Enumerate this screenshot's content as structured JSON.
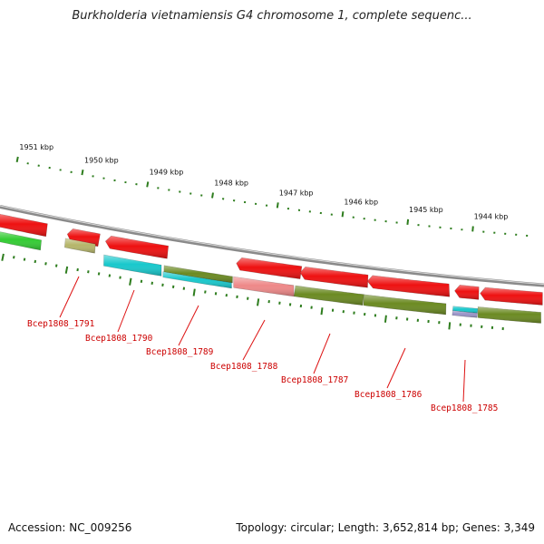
{
  "title": "Burkholderia vietnamiensis G4 chromosome 1, complete sequenc...",
  "footer": {
    "accession": "Accession: NC_009256",
    "summary": "Topology: circular; Length: 3,652,814 bp; Genes: 3,349"
  },
  "colors": {
    "backbone": "#8a8a8a",
    "tick": "#2e7d1e",
    "label_line": "#dd1111",
    "label_text": "#cc0000",
    "red_gene": "#ee1111",
    "green_bright": "#33cc33",
    "khaki": "#b5b56a",
    "cyan": "#18c8cc",
    "olive": "#6b8a22",
    "salmon": "#ee8888",
    "lavender": "#9a94c8"
  },
  "ruler": {
    "labels": [
      "1951 kbp",
      "1950 kbp",
      "1949 kbp",
      "1948 kbp",
      "1947 kbp",
      "1946 kbp",
      "1945 kbp",
      "1944 kbp"
    ]
  },
  "genes": {
    "labels": [
      "Bcep1808_1791",
      "Bcep1808_1790",
      "Bcep1808_1789",
      "Bcep1808_1788",
      "Bcep1808_1787",
      "Bcep1808_1786",
      "Bcep1808_1785"
    ]
  }
}
